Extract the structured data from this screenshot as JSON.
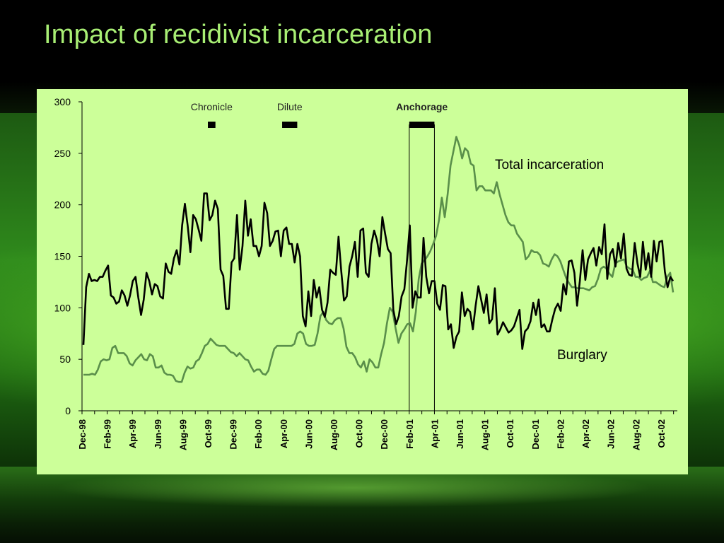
{
  "slide": {
    "title": "Impact of recidivist incarceration"
  },
  "colors": {
    "title": "#a8ee74",
    "panel": "#ccff99",
    "burglary": "#000000",
    "total_incarceration": "#5a8f4a"
  },
  "chart_data": {
    "type": "line",
    "title": "",
    "xlabel": "",
    "ylabel": "",
    "ylim": [
      0,
      300
    ],
    "yticks": [
      0,
      50,
      100,
      150,
      200,
      250,
      300
    ],
    "grid": false,
    "x_start": "Dec-98",
    "x_end": "Nov-02",
    "x_tick_labels": [
      "Dec-98",
      "Feb-99",
      "Apr-99",
      "Jun-99",
      "Aug-99",
      "Oct-99",
      "Dec-99",
      "Feb-00",
      "Apr-00",
      "Jun-00",
      "Aug-00",
      "Oct-00",
      "Dec-00",
      "Feb-01",
      "Apr-01",
      "Jun-01",
      "Aug-01",
      "Oct-01",
      "Dec-01",
      "Feb-02",
      "Apr-02",
      "Jun-02",
      "Aug-02",
      "Oct-02"
    ],
    "series": [
      {
        "name": "Burglary",
        "weekly_approx": true,
        "values": [
          64,
          120,
          133,
          126,
          127,
          126,
          130,
          130,
          136,
          141,
          112,
          110,
          104,
          106,
          117,
          112,
          102,
          112,
          126,
          130,
          110,
          93,
          108,
          134,
          126,
          113,
          123,
          121,
          111,
          109,
          143,
          135,
          133,
          148,
          156,
          142,
          180,
          201,
          180,
          154,
          190,
          186,
          176,
          165,
          211,
          211,
          185,
          190,
          204,
          196,
          137,
          131,
          99,
          99,
          144,
          148,
          190,
          137,
          160,
          204,
          170,
          186,
          160,
          160,
          150,
          160,
          202,
          192,
          160,
          165,
          174,
          175,
          150,
          175,
          178,
          162,
          162,
          144,
          162,
          150,
          92,
          82,
          116,
          92,
          127,
          110,
          120,
          98,
          91,
          105,
          137,
          134,
          132,
          169,
          136,
          107,
          111,
          140,
          150,
          164,
          130,
          175,
          177,
          134,
          130,
          162,
          175,
          166,
          150,
          188,
          172,
          157,
          153,
          98,
          84,
          92,
          111,
          118,
          146,
          180,
          100,
          116,
          110,
          110,
          168,
          130,
          114,
          126,
          126,
          104,
          98,
          122,
          121,
          79,
          84,
          61,
          72,
          77,
          115,
          92,
          99,
          96,
          79,
          102,
          121,
          108,
          95,
          113,
          85,
          89,
          119,
          74,
          79,
          86,
          81,
          76,
          78,
          82,
          90,
          98,
          60,
          77,
          80,
          87,
          105,
          93,
          108,
          81,
          84,
          77,
          77,
          89,
          99,
          104,
          97,
          123,
          113,
          145,
          146,
          134,
          102,
          126,
          156,
          127,
          147,
          153,
          158,
          141,
          159,
          152,
          181,
          128,
          152,
          157,
          140,
          163,
          148,
          172,
          138,
          132,
          131,
          163,
          143,
          130,
          164,
          137,
          153,
          130,
          165,
          145,
          164,
          165,
          135,
          120,
          130,
          126
        ]
      },
      {
        "name": "Total incarceration",
        "values": [
          35,
          35,
          35,
          36,
          35,
          40,
          48,
          50,
          49,
          50,
          61,
          63,
          56,
          56,
          56,
          53,
          46,
          44,
          49,
          52,
          55,
          50,
          49,
          55,
          53,
          42,
          42,
          44,
          37,
          35,
          35,
          34,
          29,
          28,
          28,
          37,
          43,
          41,
          42,
          48,
          50,
          56,
          63,
          65,
          70,
          67,
          64,
          63,
          63,
          63,
          60,
          57,
          56,
          53,
          56,
          53,
          50,
          49,
          43,
          38,
          40,
          40,
          36,
          35,
          39,
          50,
          60,
          63,
          63,
          63,
          63,
          63,
          63,
          65,
          75,
          77,
          75,
          65,
          63,
          63,
          64,
          75,
          92,
          96,
          88,
          85,
          84,
          88,
          90,
          90,
          80,
          62,
          56,
          56,
          52,
          45,
          42,
          48,
          38,
          50,
          47,
          42,
          42,
          55,
          66,
          85,
          100,
          96,
          80,
          66,
          75,
          79,
          84,
          85,
          77,
          96,
          128,
          143,
          146,
          150,
          155,
          162,
          170,
          185,
          207,
          188,
          210,
          238,
          252,
          266,
          258,
          245,
          255,
          252,
          240,
          238,
          214,
          218,
          218,
          214,
          214,
          214,
          211,
          222,
          210,
          200,
          190,
          183,
          180,
          180,
          172,
          168,
          164,
          147,
          150,
          156,
          154,
          154,
          151,
          143,
          142,
          140,
          147,
          152,
          150,
          145,
          137,
          129,
          124,
          120,
          120,
          119,
          119,
          119,
          118,
          117,
          120,
          121,
          128,
          138,
          140,
          138,
          133,
          130,
          143,
          145,
          146,
          147,
          140,
          138,
          137,
          130,
          130,
          127,
          129,
          130,
          136,
          125,
          125,
          123,
          121,
          120,
          130,
          134,
          115
        ]
      }
    ],
    "annotations": [
      {
        "label": "Chronicle",
        "bold": false,
        "bar_start_month": 10.0,
        "bar_end_month": 10.6
      },
      {
        "label": "Dilute",
        "bold": false,
        "bar_start_month": 15.9,
        "bar_end_month": 17.1
      },
      {
        "label": "Anchorage",
        "bold": true,
        "bar_start_month": 26.0,
        "bar_end_month": 28.0
      }
    ],
    "vertical_lines_month": [
      26.0,
      28.0
    ],
    "series_labels": [
      {
        "text": "Total incarceration",
        "series": "Total incarceration"
      },
      {
        "text": "Burglary",
        "series": "Burglary"
      }
    ]
  }
}
